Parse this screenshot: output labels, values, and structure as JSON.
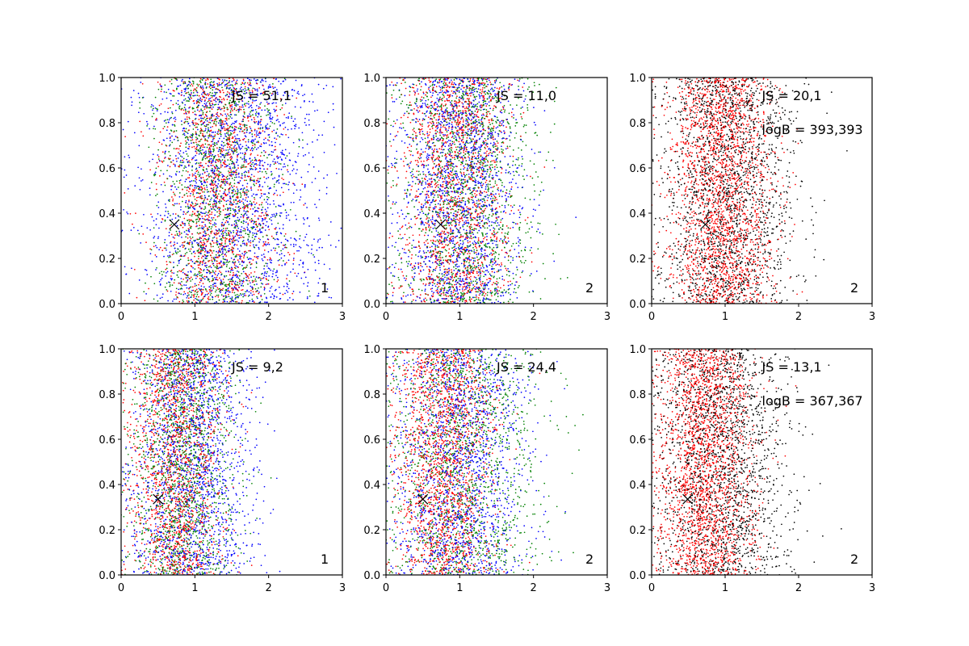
{
  "chart_data": [
    {
      "type": "scatter",
      "xlim": [
        0,
        3
      ],
      "ylim": [
        0,
        1
      ],
      "x_ticks": [
        "0",
        "1",
        "2",
        "3"
      ],
      "y_ticks": [
        "0.0",
        "0.2",
        "0.4",
        "0.6",
        "0.8",
        "1.0"
      ],
      "annotation": "JS = 51,1",
      "corner_label": "1",
      "marker": {
        "x": 0.72,
        "y": 0.35
      },
      "series": [
        {
          "color": "#0000ff",
          "count": 2000,
          "x_center": 1.5,
          "x_spread": 0.6
        },
        {
          "color": "#008000",
          "count": 1300,
          "x_center": 1.3,
          "x_spread": 0.4
        },
        {
          "color": "#ff0000",
          "count": 1300,
          "x_center": 1.3,
          "x_spread": 0.4
        }
      ]
    },
    {
      "type": "scatter",
      "xlim": [
        0,
        3
      ],
      "ylim": [
        0,
        1
      ],
      "x_ticks": [
        "0",
        "1",
        "2",
        "3"
      ],
      "y_ticks": [
        "0.0",
        "0.2",
        "0.4",
        "0.6",
        "0.8",
        "1.0"
      ],
      "annotation": "JS = 11,0",
      "corner_label": "2",
      "marker": {
        "x": 0.74,
        "y": 0.35
      },
      "series": [
        {
          "color": "#0000ff",
          "count": 1700,
          "x_center": 1.0,
          "x_spread": 0.42
        },
        {
          "color": "#008000",
          "count": 1500,
          "x_center": 1.1,
          "x_spread": 0.45
        },
        {
          "color": "#ff0000",
          "count": 1500,
          "x_center": 0.95,
          "x_spread": 0.38
        }
      ]
    },
    {
      "type": "scatter",
      "xlim": [
        0,
        3
      ],
      "ylim": [
        0,
        1
      ],
      "x_ticks": [
        "0",
        "1",
        "2",
        "3"
      ],
      "y_ticks": [
        "0.0",
        "0.2",
        "0.4",
        "0.6",
        "0.8",
        "1.0"
      ],
      "annotation": "JS = 20,1",
      "annotation2": "logB = 393,393",
      "corner_label": "2",
      "marker": {
        "x": 0.73,
        "y": 0.35
      },
      "series": [
        {
          "color": "#000000",
          "count": 1900,
          "x_center": 1.05,
          "x_spread": 0.45
        },
        {
          "color": "#ff0000",
          "count": 2100,
          "x_center": 0.95,
          "x_spread": 0.35
        }
      ]
    },
    {
      "type": "scatter",
      "xlim": [
        0,
        3
      ],
      "ylim": [
        0,
        1
      ],
      "x_ticks": [
        "0",
        "1",
        "2",
        "3"
      ],
      "y_ticks": [
        "0.0",
        "0.2",
        "0.4",
        "0.6",
        "0.8",
        "1.0"
      ],
      "annotation": "JS = 9,2",
      "corner_label": "1",
      "marker": {
        "x": 0.5,
        "y": 0.335
      },
      "series": [
        {
          "color": "#0000ff",
          "count": 1700,
          "x_center": 0.95,
          "x_spread": 0.42
        },
        {
          "color": "#008000",
          "count": 1500,
          "x_center": 0.85,
          "x_spread": 0.35
        },
        {
          "color": "#ff0000",
          "count": 1500,
          "x_center": 0.75,
          "x_spread": 0.32
        }
      ]
    },
    {
      "type": "scatter",
      "xlim": [
        0,
        3
      ],
      "ylim": [
        0,
        1
      ],
      "x_ticks": [
        "0",
        "1",
        "2",
        "3"
      ],
      "y_ticks": [
        "0.0",
        "0.2",
        "0.4",
        "0.6",
        "0.8",
        "1.0"
      ],
      "annotation": "JS = 24,4",
      "corner_label": "2",
      "marker": {
        "x": 0.5,
        "y": 0.335
      },
      "series": [
        {
          "color": "#0000ff",
          "count": 1600,
          "x_center": 1.0,
          "x_spread": 0.45
        },
        {
          "color": "#008000",
          "count": 1500,
          "x_center": 1.05,
          "x_spread": 0.5
        },
        {
          "color": "#ff0000",
          "count": 1700,
          "x_center": 0.8,
          "x_spread": 0.32
        }
      ]
    },
    {
      "type": "scatter",
      "xlim": [
        0,
        3
      ],
      "ylim": [
        0,
        1
      ],
      "x_ticks": [
        "0",
        "1",
        "2",
        "3"
      ],
      "y_ticks": [
        "0.0",
        "0.2",
        "0.4",
        "0.6",
        "0.8",
        "1.0"
      ],
      "annotation": "JS = 13,1",
      "annotation2": "logB = 367,367",
      "corner_label": "2",
      "marker": {
        "x": 0.49,
        "y": 0.335
      },
      "series": [
        {
          "color": "#000000",
          "count": 1900,
          "x_center": 0.95,
          "x_spread": 0.45
        },
        {
          "color": "#ff0000",
          "count": 2100,
          "x_center": 0.75,
          "x_spread": 0.32
        }
      ]
    }
  ]
}
